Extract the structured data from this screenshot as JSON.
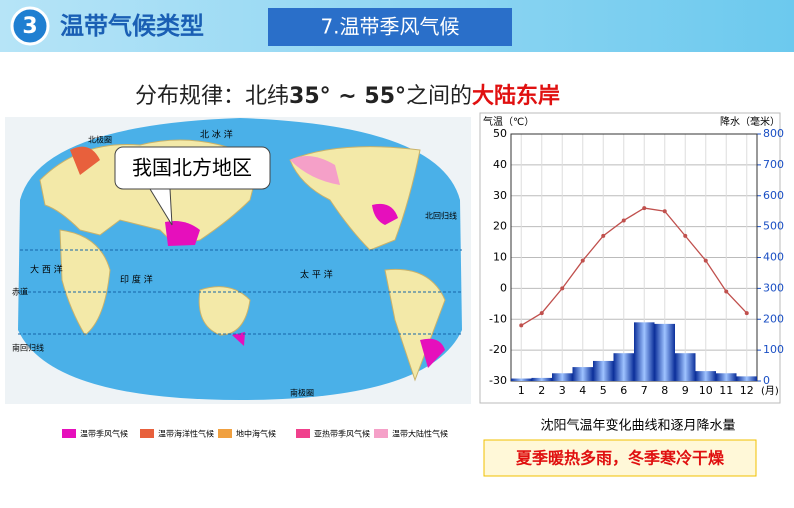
{
  "header": {
    "badge": "3",
    "title": "温带气候类型",
    "tab": "7.温带季风气候"
  },
  "subtitle": {
    "lead": "分布规律：北纬",
    "range": "35° ~ 55°",
    "mid": "之间的",
    "emphasis": "大陆东岸"
  },
  "map": {
    "callout": "我国北方地区",
    "labels": [
      "北 冰 洋",
      "太 平 洋",
      "印 度 洋",
      "大 西 洋",
      "北回归线",
      "赤道",
      "南回归线",
      "南极圈",
      "北极圈"
    ],
    "legend": [
      "温带季风气候",
      "温带海洋性气候",
      "地中海气候",
      "亚热带季风气候",
      "温带大陆性气候"
    ]
  },
  "chart_data": {
    "type": "bar",
    "ylabel": "气温（℃）",
    "y2label": "降水（毫米）",
    "xunit": "(月)",
    "categories": [
      "1",
      "2",
      "3",
      "4",
      "5",
      "6",
      "7",
      "8",
      "9",
      "10",
      "11",
      "12"
    ],
    "ylim": [
      -30,
      50
    ],
    "yticks": [
      -30,
      -20,
      -10,
      0,
      10,
      20,
      30,
      40,
      50
    ],
    "y2lim": [
      0,
      800
    ],
    "y2ticks": [
      0,
      100,
      200,
      300,
      400,
      500,
      600,
      700,
      800
    ],
    "grid": true,
    "series": [
      {
        "name": "降水",
        "type": "bar",
        "axis": "y2",
        "color": "#1a4fc4",
        "values": [
          8,
          10,
          25,
          45,
          65,
          90,
          190,
          185,
          90,
          32,
          25,
          15
        ]
      },
      {
        "name": "气温",
        "type": "line",
        "color": "#c0504d",
        "values": [
          -12,
          -8,
          0,
          9,
          17,
          22,
          26,
          25,
          17,
          9,
          -1,
          -8
        ]
      }
    ],
    "caption": "沈阳气温年变化曲线和逐月降水量",
    "conclusion": "夏季暖热多雨，冬季寒冷干燥"
  }
}
